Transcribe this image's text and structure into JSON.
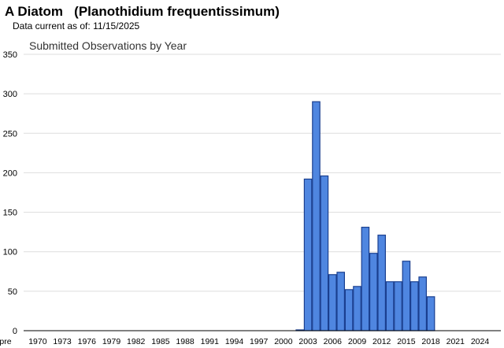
{
  "header": {
    "species_name": "A Diatom",
    "scientific_name": "(Planothidium frequentissimum)",
    "data_current_label": "Data current as of:",
    "data_current_date": "11/15/2025"
  },
  "chart_data": {
    "type": "bar",
    "title": "Submitted Observations by Year",
    "xlabel": "",
    "ylabel": "",
    "ylim": [
      0,
      350
    ],
    "yticks": [
      0,
      50,
      100,
      150,
      200,
      250,
      300,
      350
    ],
    "grid": true,
    "bar_color": "#4f86e0",
    "bar_edge_color": "#1a3f8f",
    "categories": [
      "pre",
      "1970",
      "1971",
      "1972",
      "1973",
      "1974",
      "1975",
      "1976",
      "1977",
      "1978",
      "1979",
      "1980",
      "1981",
      "1982",
      "1983",
      "1984",
      "1985",
      "1986",
      "1987",
      "1988",
      "1989",
      "1990",
      "1991",
      "1992",
      "1993",
      "1994",
      "1995",
      "1996",
      "1997",
      "1998",
      "1999",
      "2000",
      "2001",
      "2002",
      "2003",
      "2004",
      "2005",
      "2006",
      "2007",
      "2008",
      "2009",
      "2010",
      "2011",
      "2012",
      "2013",
      "2014",
      "2015",
      "2016",
      "2017",
      "2018",
      "2019",
      "2020",
      "2021",
      "2022",
      "2023",
      "2024",
      "2025"
    ],
    "values": [
      0,
      0,
      0,
      0,
      0,
      0,
      0,
      0,
      0,
      0,
      0,
      0,
      0,
      0,
      0,
      0,
      0,
      0,
      0,
      0,
      0,
      0,
      0,
      0,
      0,
      0,
      0,
      0,
      0,
      0,
      0,
      0,
      0,
      1,
      192,
      290,
      196,
      71,
      74,
      52,
      56,
      131,
      98,
      121,
      62,
      62,
      88,
      62,
      68,
      43,
      0,
      0,
      0,
      0,
      0,
      0,
      0
    ],
    "xtick_labels": [
      "pre",
      "1970",
      "1973",
      "1976",
      "1979",
      "1982",
      "1985",
      "1988",
      "1991",
      "1994",
      "1997",
      "2000",
      "2003",
      "2006",
      "2009",
      "2012",
      "2015",
      "2018",
      "2021",
      "2024"
    ]
  }
}
